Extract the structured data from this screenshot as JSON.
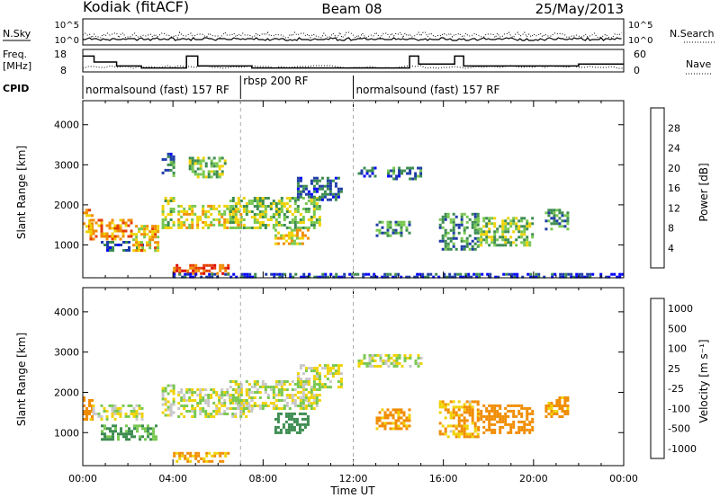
{
  "header": {
    "station": "Kodiak (fitACF)",
    "beam": "Beam 08",
    "date": "25/May/2013"
  },
  "top_panels": {
    "nsky_label": "N.Sky",
    "nsearch_label": "N.Search",
    "nsky_ticks": [
      "10^5",
      "10^0"
    ],
    "nsearch_ticks": [
      "10^5",
      "10^0"
    ],
    "freq_label_1": "Freq.",
    "freq_label_2": "[MHz]",
    "freq_ticks": [
      "18",
      "8"
    ],
    "nave_label": "Nave",
    "nave_ticks": [
      "60",
      "0"
    ],
    "cpid_label": "CPID",
    "cpid_segments": [
      "normalsound (fast) 157 RF",
      "rbsp 200 RF",
      "normalsound (fast) 157 RF"
    ]
  },
  "axes": {
    "ylabel": "Slant Range [km]",
    "yticks": [
      "4000",
      "3000",
      "2000",
      "1000"
    ],
    "xticks": [
      "00:00",
      "04:00",
      "08:00",
      "12:00",
      "16:00",
      "20:00",
      "00:00"
    ],
    "xlabel": "Time UT"
  },
  "colorbars": {
    "power": {
      "label": "Power [dB]",
      "ticks": [
        "28",
        "24",
        "20",
        "16",
        "12",
        "8",
        "4"
      ],
      "colors": [
        "#0000ff",
        "#1e3ca8",
        "#3c8c50",
        "#78c850",
        "#f0d200",
        "#f08c00",
        "#e63c00",
        "#dc0000"
      ]
    },
    "velocity": {
      "label": "Velocity [m s⁻¹]",
      "ticks": [
        "1000",
        "500",
        "100",
        "25",
        "-25",
        "-100",
        "-500",
        "-1000"
      ],
      "colors": [
        "#1e3ca8",
        "#3c8c50",
        "#78c850",
        "#c8c8c8",
        "#f0d200",
        "#f08c00",
        "#e63c00",
        "#dc0000"
      ]
    }
  },
  "chart_data": {
    "type": "heatmap",
    "x_unit": "hours UT",
    "y_unit": "km",
    "xlim": [
      0,
      24
    ],
    "ylim": [
      180,
      4600
    ],
    "power_clusters": [
      {
        "t0": 0.0,
        "t1": 0.4,
        "r0": 1350,
        "r1": 1900,
        "p": 20
      },
      {
        "t0": 0.3,
        "t1": 2.2,
        "r0": 1150,
        "r1": 1650,
        "p": 22
      },
      {
        "t0": 0.8,
        "t1": 2.6,
        "r0": 850,
        "r1": 1100,
        "p": 8
      },
      {
        "t0": 2.2,
        "t1": 3.3,
        "r0": 850,
        "r1": 1500,
        "p": 20
      },
      {
        "t0": 3.5,
        "t1": 4.0,
        "r0": 1400,
        "r1": 2200,
        "p": 14
      },
      {
        "t0": 3.5,
        "t1": 4.0,
        "r0": 2700,
        "r1": 3300,
        "p": 8
      },
      {
        "t0": 4.0,
        "t1": 6.5,
        "r0": 280,
        "r1": 520,
        "p": 26
      },
      {
        "t0": 4.2,
        "t1": 7.0,
        "r0": 1400,
        "r1": 2000,
        "p": 18
      },
      {
        "t0": 4.7,
        "t1": 6.3,
        "r0": 2700,
        "r1": 3200,
        "p": 13
      },
      {
        "t0": 6.5,
        "t1": 10.5,
        "r0": 1400,
        "r1": 2200,
        "p": 14
      },
      {
        "t0": 8.5,
        "t1": 10.0,
        "r0": 1000,
        "r1": 1400,
        "p": 18
      },
      {
        "t0": 9.5,
        "t1": 11.5,
        "r0": 2100,
        "r1": 2700,
        "p": 7
      },
      {
        "t0": 12.2,
        "t1": 13.0,
        "r0": 2700,
        "r1": 2950,
        "p": 6
      },
      {
        "t0": 13.0,
        "t1": 14.5,
        "r0": 1200,
        "r1": 1600,
        "p": 10
      },
      {
        "t0": 13.5,
        "t1": 15.0,
        "r0": 2650,
        "r1": 2950,
        "p": 8
      },
      {
        "t0": 15.8,
        "t1": 17.5,
        "r0": 900,
        "r1": 1800,
        "p": 10
      },
      {
        "t0": 17.5,
        "t1": 20.0,
        "r0": 1000,
        "r1": 1700,
        "p": 14
      },
      {
        "t0": 20.5,
        "t1": 21.5,
        "r0": 1400,
        "r1": 1900,
        "p": 10
      },
      {
        "t0": 4.0,
        "t1": 24.0,
        "r0": 220,
        "r1": 300,
        "p": 5
      }
    ],
    "velocity_clusters": [
      {
        "t0": 0.0,
        "t1": 0.4,
        "r0": 1350,
        "r1": 1900,
        "v": -300
      },
      {
        "t0": 0.3,
        "t1": 2.6,
        "r0": 1350,
        "r1": 1700,
        "v": 0
      },
      {
        "t0": 0.8,
        "t1": 3.3,
        "r0": 850,
        "r1": 1200,
        "v": 120
      },
      {
        "t0": 3.5,
        "t1": 4.0,
        "r0": 1400,
        "r1": 2200,
        "v": 0
      },
      {
        "t0": 4.0,
        "t1": 6.5,
        "r0": 280,
        "r1": 520,
        "v": -120
      },
      {
        "t0": 4.2,
        "t1": 7.5,
        "r0": 1400,
        "r1": 2100,
        "v": 0
      },
      {
        "t0": 6.5,
        "t1": 10.5,
        "r0": 1600,
        "r1": 2300,
        "v": 0
      },
      {
        "t0": 8.5,
        "t1": 10.0,
        "r0": 1000,
        "r1": 1500,
        "v": 300
      },
      {
        "t0": 9.5,
        "t1": 11.5,
        "r0": 2100,
        "r1": 2700,
        "v": 0
      },
      {
        "t0": 12.2,
        "t1": 15.0,
        "r0": 2650,
        "r1": 2950,
        "v": 0
      },
      {
        "t0": 13.0,
        "t1": 14.5,
        "r0": 1100,
        "r1": 1600,
        "v": -150
      },
      {
        "t0": 15.8,
        "t1": 17.5,
        "r0": 900,
        "r1": 1800,
        "v": -100
      },
      {
        "t0": 17.5,
        "t1": 20.0,
        "r0": 1000,
        "r1": 1700,
        "v": -400
      },
      {
        "t0": 20.5,
        "t1": 21.5,
        "r0": 1400,
        "r1": 1900,
        "v": -150
      }
    ],
    "frequency_steps": [
      {
        "t": 0.0,
        "v": 16
      },
      {
        "t": 0.5,
        "v": 13
      },
      {
        "t": 1.5,
        "v": 11
      },
      {
        "t": 2.6,
        "v": 10
      },
      {
        "t": 3.5,
        "v": 10
      },
      {
        "t": 4.6,
        "v": 16
      },
      {
        "t": 5.1,
        "v": 11
      },
      {
        "t": 7.5,
        "v": 10
      },
      {
        "t": 12.0,
        "v": 10
      },
      {
        "t": 14.5,
        "v": 16
      },
      {
        "t": 14.9,
        "v": 12
      },
      {
        "t": 16.5,
        "v": 16
      },
      {
        "t": 16.9,
        "v": 11
      },
      {
        "t": 20.0,
        "v": 11
      },
      {
        "t": 22.0,
        "v": 12
      },
      {
        "t": 24.0,
        "v": 12
      }
    ],
    "cpid_boundaries_hours": [
      7.0,
      12.0
    ]
  }
}
